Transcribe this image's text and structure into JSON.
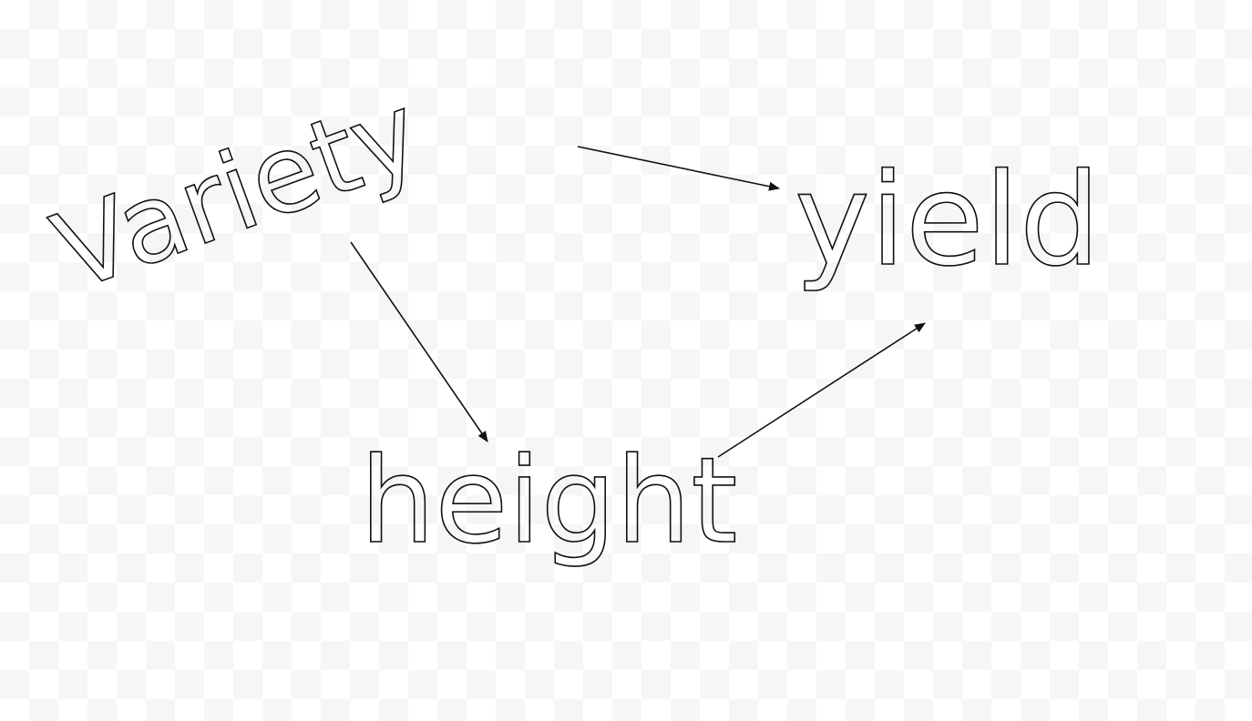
{
  "nodes": [
    {
      "label": "Variety"
    },
    {
      "label": "yield"
    },
    {
      "label": "height"
    }
  ]
}
